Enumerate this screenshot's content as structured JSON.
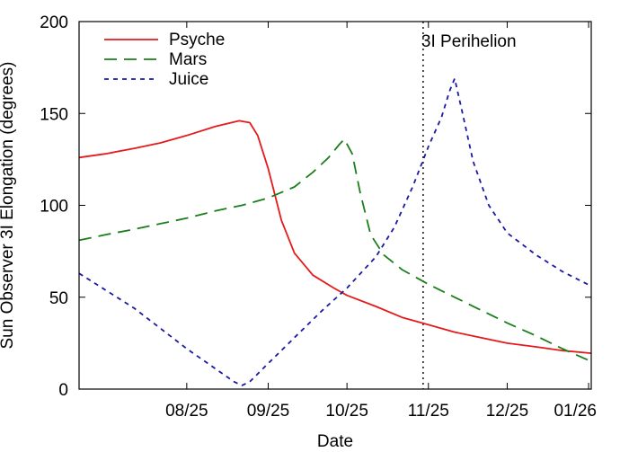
{
  "chart_data": {
    "type": "line",
    "title": "",
    "xlabel": "Date",
    "ylabel": "Sun Observer 3I Elongation (degrees)",
    "x_ticks": [
      "08/25",
      "09/25",
      "10/25",
      "11/25",
      "12/25",
      "01/26"
    ],
    "y_ticks": [
      "0",
      "50",
      "100",
      "150",
      "200"
    ],
    "ylim": [
      0,
      200
    ],
    "xlim": [
      "2025-07-15",
      "2026-01-26"
    ],
    "grid": false,
    "legend_position": "top-left",
    "series": [
      {
        "name": "Psyche",
        "color": "#e41a1c",
        "dash": "solid",
        "points": [
          [
            "2025-07-15",
            126
          ],
          [
            "2025-07-25",
            128
          ],
          [
            "2025-08-05",
            131
          ],
          [
            "2025-08-15",
            134
          ],
          [
            "2025-08-25",
            138
          ],
          [
            "2025-09-05",
            143
          ],
          [
            "2025-09-14",
            146
          ],
          [
            "2025-09-18",
            145
          ],
          [
            "2025-09-21",
            138
          ],
          [
            "2025-09-25",
            120
          ],
          [
            "2025-09-30",
            92
          ],
          [
            "2025-10-05",
            74
          ],
          [
            "2025-10-12",
            62
          ],
          [
            "2025-10-20",
            55
          ],
          [
            "2025-10-25",
            51
          ],
          [
            "2025-11-05",
            45
          ],
          [
            "2025-11-15",
            39
          ],
          [
            "2025-11-25",
            35
          ],
          [
            "2025-12-05",
            31
          ],
          [
            "2025-12-15",
            28
          ],
          [
            "2025-12-25",
            25
          ],
          [
            "2026-01-05",
            23
          ],
          [
            "2026-01-15",
            21
          ],
          [
            "2026-01-26",
            19.5
          ]
        ]
      },
      {
        "name": "Mars",
        "color": "#1a7f1a",
        "dash": "long-dash",
        "points": [
          [
            "2025-07-15",
            81
          ],
          [
            "2025-07-25",
            84
          ],
          [
            "2025-08-05",
            87
          ],
          [
            "2025-08-15",
            90
          ],
          [
            "2025-08-25",
            93
          ],
          [
            "2025-09-05",
            97
          ],
          [
            "2025-09-15",
            100
          ],
          [
            "2025-09-25",
            104
          ],
          [
            "2025-10-05",
            110
          ],
          [
            "2025-10-12",
            118
          ],
          [
            "2025-10-18",
            126
          ],
          [
            "2025-10-22",
            133
          ],
          [
            "2025-10-24",
            136
          ],
          [
            "2025-10-27",
            128
          ],
          [
            "2025-10-30",
            107
          ],
          [
            "2025-11-03",
            84
          ],
          [
            "2025-11-08",
            73
          ],
          [
            "2025-11-15",
            65
          ],
          [
            "2025-11-25",
            57
          ],
          [
            "2025-12-05",
            50
          ],
          [
            "2025-12-15",
            43
          ],
          [
            "2025-12-25",
            36
          ],
          [
            "2026-01-05",
            29
          ],
          [
            "2026-01-15",
            22
          ],
          [
            "2026-01-26",
            15
          ]
        ]
      },
      {
        "name": "Juice",
        "color": "#1a1aa0",
        "dash": "short-dash",
        "points": [
          [
            "2025-07-15",
            63
          ],
          [
            "2025-07-25",
            54
          ],
          [
            "2025-08-05",
            44
          ],
          [
            "2025-08-15",
            33
          ],
          [
            "2025-08-25",
            22
          ],
          [
            "2025-09-05",
            11
          ],
          [
            "2025-09-12",
            4
          ],
          [
            "2025-09-15",
            2
          ],
          [
            "2025-09-18",
            4
          ],
          [
            "2025-09-25",
            14
          ],
          [
            "2025-10-05",
            28
          ],
          [
            "2025-10-15",
            42
          ],
          [
            "2025-10-25",
            55
          ],
          [
            "2025-11-05",
            72
          ],
          [
            "2025-11-12",
            88
          ],
          [
            "2025-11-19",
            110
          ],
          [
            "2025-11-25",
            132
          ],
          [
            "2025-11-30",
            148
          ],
          [
            "2025-12-03",
            162
          ],
          [
            "2025-12-05",
            169
          ],
          [
            "2025-12-08",
            150
          ],
          [
            "2025-12-12",
            124
          ],
          [
            "2025-12-18",
            100
          ],
          [
            "2025-12-25",
            85
          ],
          [
            "2026-01-05",
            73
          ],
          [
            "2026-01-15",
            64
          ],
          [
            "2026-01-26",
            56
          ]
        ]
      }
    ],
    "annotations": [
      {
        "label": "3I Perihelion",
        "x": "2025-11-23",
        "style": "dotted-vertical-line"
      }
    ]
  }
}
